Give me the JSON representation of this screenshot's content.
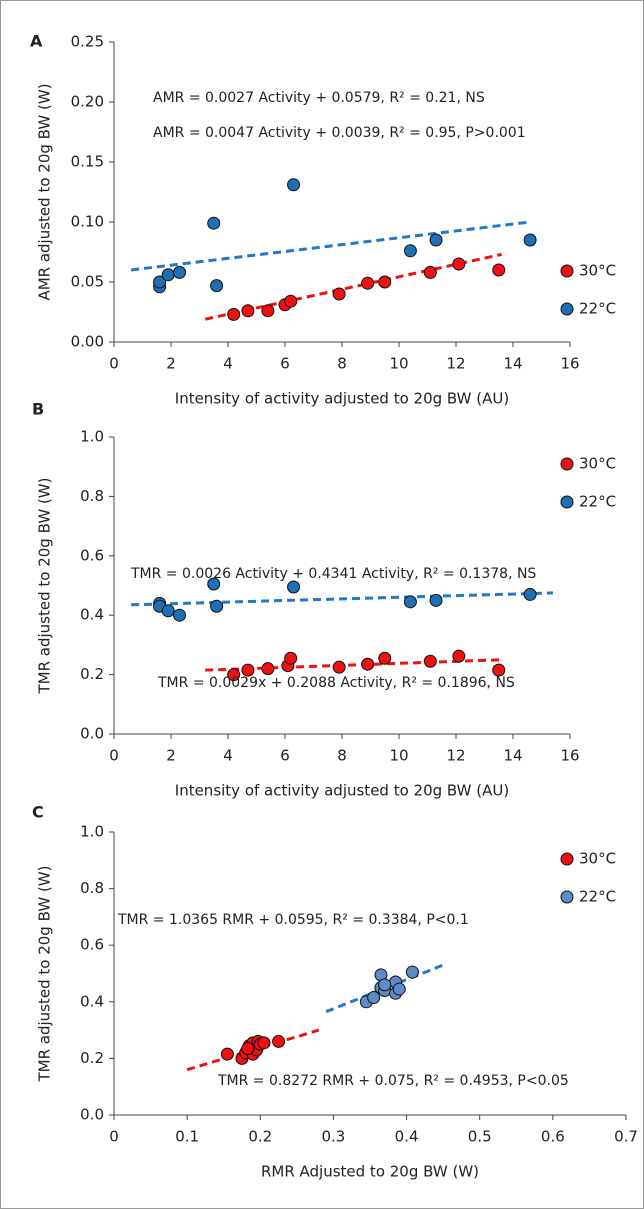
{
  "chart_data": [
    {
      "type": "scatter",
      "panel": "A",
      "xlabel": "Intensity of activity adjusted to 20g BW (AU)",
      "ylabel": "AMR adjusted to 20g BW (W)",
      "xlim": [
        0,
        16
      ],
      "xticks": [
        0,
        2,
        4,
        6,
        8,
        10,
        12,
        14,
        16
      ],
      "ylim": [
        0,
        0.25
      ],
      "yticks": [
        {
          "value": 0,
          "label": "0.00"
        },
        {
          "value": 0.05,
          "label": "0.05"
        },
        {
          "value": 0.1,
          "label": "0.10"
        },
        {
          "value": 0.15,
          "label": "0.15"
        },
        {
          "value": 0.2,
          "label": "0.20"
        },
        {
          "value": 0.25,
          "label": "0.25"
        }
      ],
      "legend": "center right",
      "series": [
        {
          "name": "30°C",
          "color": "#ee1111",
          "x": [
            4.2,
            4.7,
            5.4,
            6.0,
            6.2,
            7.9,
            8.9,
            9.5,
            11.1,
            12.1,
            13.5
          ],
          "values": [
            0.023,
            0.026,
            0.026,
            0.031,
            0.034,
            0.04,
            0.049,
            0.05,
            0.058,
            0.065,
            0.06
          ],
          "trendline": {
            "x": [
              3.2,
              13.6
            ],
            "y": [
              0.019,
              0.073
            ],
            "color": "#ee1111"
          }
        },
        {
          "name": "22°C",
          "color": "#1f6fb4",
          "x": [
            1.6,
            1.6,
            1.9,
            2.3,
            3.5,
            3.6,
            6.3,
            10.4,
            11.3,
            14.6
          ],
          "values": [
            0.046,
            0.05,
            0.056,
            0.058,
            0.099,
            0.047,
            0.131,
            0.076,
            0.085,
            0.085
          ],
          "trendline": {
            "x": [
              0.6,
              14.6
            ],
            "y": [
              0.06,
              0.1
            ],
            "color": "#1f78c8"
          }
        }
      ],
      "annotations": [
        {
          "text": "AMR = 0.0027 Activity + 0.0579,  R² = 0.21, NS",
          "color": "#1f78c8"
        },
        {
          "text": "AMR = 0.0047 Activity + 0.0039, R² = 0.95, P>0.001",
          "color": "#ee1111"
        }
      ]
    },
    {
      "type": "scatter",
      "panel": "B",
      "xlabel": "Intensity of activity adjusted to 20g BW (AU)",
      "ylabel": "TMR adjusted to 20g BW (W)",
      "xlim": [
        0,
        16
      ],
      "xticks": [
        0,
        2,
        4,
        6,
        8,
        10,
        12,
        14,
        16
      ],
      "ylim": [
        0,
        1
      ],
      "yticks": [
        {
          "value": 0,
          "label": "0.0"
        },
        0.2,
        0.4,
        0.6,
        0.8,
        {
          "value": 1,
          "label": "1.0"
        }
      ],
      "legend": "upper right",
      "series": [
        {
          "name": "30°C",
          "color": "#ee1111",
          "x": [
            4.2,
            4.7,
            5.4,
            6.1,
            6.2,
            7.9,
            8.9,
            9.5,
            11.1,
            12.1,
            13.5
          ],
          "values": [
            0.2,
            0.215,
            0.22,
            0.23,
            0.255,
            0.225,
            0.235,
            0.255,
            0.245,
            0.262,
            0.215
          ],
          "trendline": {
            "x": [
              3.2,
              13.6
            ],
            "y": [
              0.215,
              0.25
            ],
            "color": "#ee1111"
          }
        },
        {
          "name": "22°C",
          "color": "#1f6fb4",
          "x": [
            1.6,
            1.6,
            1.9,
            2.3,
            3.5,
            3.6,
            6.3,
            10.4,
            11.3,
            14.6
          ],
          "values": [
            0.44,
            0.43,
            0.415,
            0.4,
            0.505,
            0.43,
            0.495,
            0.445,
            0.45,
            0.47
          ],
          "trendline": {
            "x": [
              0.6,
              15.4
            ],
            "y": [
              0.435,
              0.475
            ],
            "color": "#1f78c8"
          }
        }
      ],
      "annotations": [
        {
          "text": "TMR = 0.0026 Activity + 0.4341 Activity, R² = 0.1378, NS",
          "color": "#1f78c8"
        },
        {
          "text": "TMR = 0.0029x + 0.2088 Activity, R² = 0.1896, NS",
          "color": "#ee1111"
        }
      ]
    },
    {
      "type": "scatter",
      "panel": "C",
      "xlabel": "RMR Adjusted to 20g BW (W)",
      "ylabel": "TMR adjusted to 20g BW (W)",
      "xlim": [
        0,
        0.7
      ],
      "xticks": [
        0,
        0.1,
        0.2,
        0.3,
        0.4,
        0.5,
        0.6,
        0.7
      ],
      "ylim": [
        0,
        1
      ],
      "yticks": [
        {
          "value": 0,
          "label": "0.0"
        },
        0.2,
        0.4,
        0.6,
        0.8,
        {
          "value": 1,
          "label": "1.0"
        }
      ],
      "legend": "upper right",
      "series": [
        {
          "name": "30°C",
          "color": "#ee1111",
          "x": [
            0.155,
            0.175,
            0.18,
            0.185,
            0.19,
            0.19,
            0.195,
            0.197,
            0.2,
            0.205,
            0.225,
            0.183
          ],
          "values": [
            0.215,
            0.2,
            0.22,
            0.245,
            0.215,
            0.255,
            0.23,
            0.26,
            0.25,
            0.255,
            0.26,
            0.235
          ],
          "trendline": {
            "x": [
              0.1,
              0.28
            ],
            "y": [
              0.16,
              0.3
            ],
            "color": "#ee1111"
          }
        },
        {
          "name": "22°C",
          "color": "#5b8cc8",
          "x": [
            0.345,
            0.355,
            0.365,
            0.365,
            0.37,
            0.385,
            0.385,
            0.39,
            0.408,
            0.37
          ],
          "values": [
            0.4,
            0.415,
            0.495,
            0.45,
            0.44,
            0.43,
            0.47,
            0.445,
            0.505,
            0.46
          ],
          "trendline": {
            "x": [
              0.29,
              0.455
            ],
            "y": [
              0.365,
              0.535
            ],
            "color": "#1f78c8"
          }
        }
      ],
      "annotations": [
        {
          "text": "TMR = 1.0365 RMR + 0.0595, R² = 0.3384, P<0.1",
          "color": "#1f78c8"
        },
        {
          "text": "TMR = 0.8272 RMR + 0.075, R² = 0.4953, P<0.05",
          "color": "#ee1111"
        }
      ]
    }
  ]
}
